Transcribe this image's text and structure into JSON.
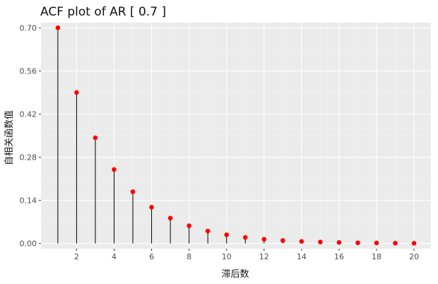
{
  "chart_data": {
    "type": "line",
    "title": "ACF plot of AR [ 0.7 ]",
    "xlabel": "滞后数",
    "ylabel": "自相关函数值",
    "x": [
      1,
      2,
      3,
      4,
      5,
      6,
      7,
      8,
      9,
      10,
      11,
      12,
      13,
      14,
      15,
      16,
      17,
      18,
      19,
      20
    ],
    "values": [
      0.7,
      0.49,
      0.343,
      0.2401,
      0.16807,
      0.117649,
      0.0823543,
      0.057648,
      0.0403536,
      0.0282475,
      0.0197733,
      0.0138413,
      0.0096889,
      0.0067822,
      0.0047476,
      0.0033233,
      0.0023263,
      0.0016284,
      0.0011399,
      0.0007979
    ],
    "xticks": [
      2,
      4,
      6,
      8,
      10,
      12,
      14,
      16,
      18,
      20
    ],
    "xtick_labels": [
      "2",
      "4",
      "6",
      "8",
      "10",
      "12",
      "14",
      "16",
      "18",
      "20"
    ],
    "yticks": [
      0,
      0.14,
      0.28,
      0.42,
      0.56,
      0.7
    ],
    "ytick_labels": [
      "0.00",
      "0.14",
      "0.28",
      "0.42",
      "0.56",
      "0.70"
    ],
    "xlim": [
      0.1,
      20.9
    ],
    "ylim": [
      -0.0168,
      0.7168
    ],
    "grid": true,
    "colors": {
      "panel": "#ebebeb",
      "grid_major": "#ffffff",
      "grid_minor": "#f5f5f5",
      "stem": "#000000",
      "point": "#ff0000"
    }
  }
}
